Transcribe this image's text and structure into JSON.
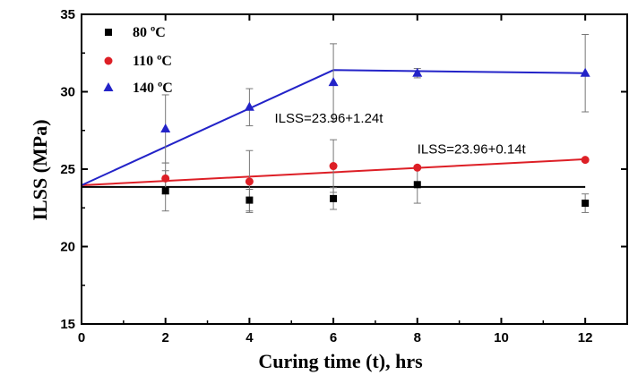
{
  "chart_data": {
    "type": "scatter",
    "xlabel": "Curing time (t), hrs",
    "ylabel": "ILSS (MPa)",
    "xlim": [
      0,
      13
    ],
    "ylim": [
      15,
      35
    ],
    "x_ticks": [
      0,
      2,
      4,
      6,
      8,
      10,
      12
    ],
    "y_ticks": [
      15,
      20,
      25,
      30,
      35
    ],
    "grid": false,
    "legend_position": "top-left",
    "series": [
      {
        "name": "80 ºC",
        "marker": "square",
        "color": "#000000",
        "x": [
          2,
          4,
          6,
          8,
          12
        ],
        "y": [
          23.6,
          23.0,
          23.1,
          24.0,
          22.8
        ],
        "err": [
          1.3,
          0.7,
          0.7,
          1.2,
          0.6
        ],
        "fit": {
          "x": [
            0,
            12
          ],
          "y": [
            23.85,
            23.85
          ],
          "color": "#000000"
        }
      },
      {
        "name": "110 ºC",
        "marker": "circle",
        "color": "#dd1f26",
        "x": [
          2,
          4,
          6,
          8,
          12
        ],
        "y": [
          24.4,
          24.2,
          25.2,
          25.1,
          25.6
        ],
        "err": [
          1.0,
          2.0,
          1.7,
          0.0,
          0.0
        ],
        "fit": {
          "x": [
            0,
            12
          ],
          "y": [
            23.96,
            25.64
          ],
          "color": "#dd1f26"
        }
      },
      {
        "name": "140 ºC",
        "marker": "triangle",
        "color": "#2323c8",
        "x": [
          2,
          4,
          6,
          8,
          12
        ],
        "y": [
          27.6,
          29.0,
          30.6,
          31.2,
          31.2
        ],
        "err": [
          2.2,
          1.2,
          2.5,
          0.3,
          2.5
        ],
        "fit": {
          "x": [
            0,
            6,
            12
          ],
          "y": [
            23.96,
            31.4,
            31.2
          ],
          "color": "#2323c8"
        }
      }
    ],
    "annotations": [
      {
        "text": "ILSS=23.96+1.24t",
        "x": 4.6,
        "y": 28.0
      },
      {
        "text": "ILSS=23.96+0.14t",
        "x": 8.0,
        "y": 26.0
      }
    ]
  }
}
